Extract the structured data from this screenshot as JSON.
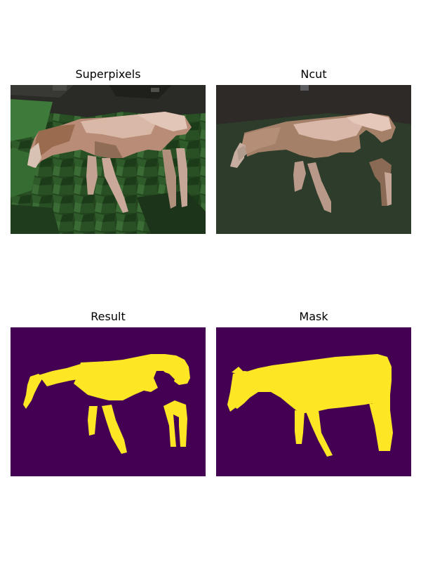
{
  "figure": {
    "panels": [
      {
        "title": "Superpixels",
        "content": "superpixel segmentation of horse photo"
      },
      {
        "title": "Ncut",
        "content": "normalized cut segmentation of horse photo"
      },
      {
        "title": "Result",
        "content": "binary segmentation result"
      },
      {
        "title": "Mask",
        "content": "ground truth mask"
      }
    ]
  },
  "colors": {
    "background_purple": "#440154",
    "foreground_yellow": "#fde725",
    "ncut_grass": "#2e3d2b",
    "ncut_sky": "#2d2a27",
    "horse_light": "#d6b7a8",
    "horse_mid": "#b08a74",
    "horse_dark": "#8a6a55",
    "grass_dark": "#1f3a1d",
    "grass_light": "#3f7a3b"
  }
}
